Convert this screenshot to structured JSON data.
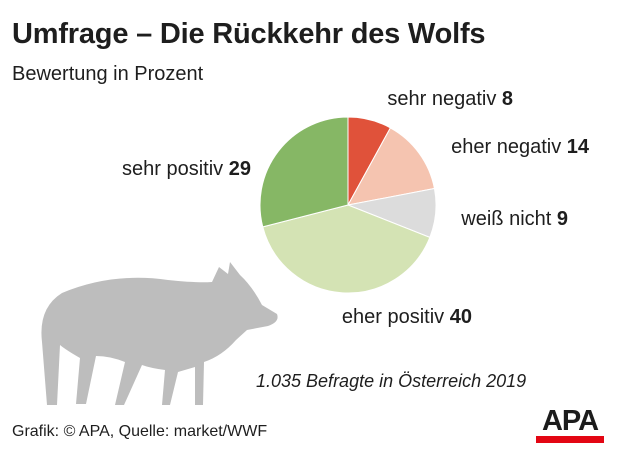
{
  "title": "Umfrage – Die Rückkehr des Wolfs",
  "subtitle": "Bewertung in Prozent",
  "footnote": "1.035 Befragte in Österreich 2019",
  "source": "Grafik: © APA, Quelle: market/WWF",
  "logo": "APA",
  "wolf_icon": "wolf-silhouette",
  "colors": {
    "sehr_negativ": "#e0523a",
    "eher_negativ": "#f5c4b0",
    "weiss_nicht": "#dcdcdc",
    "eher_positiv": "#d4e3b4",
    "sehr_positiv": "#86b765",
    "wolf": "#bdbdbd",
    "logo_bar": "#e30613"
  },
  "chart_data": {
    "type": "pie",
    "title": "Umfrage – Die Rückkehr des Wolfs",
    "subtitle": "Bewertung in Prozent",
    "unit": "Prozent",
    "slices": [
      {
        "label": "sehr negativ",
        "value": 8
      },
      {
        "label": "eher negativ",
        "value": 14
      },
      {
        "label": "weiß nicht",
        "value": 9
      },
      {
        "label": "eher positiv",
        "value": 40
      },
      {
        "label": "sehr positiv",
        "value": 29
      }
    ]
  }
}
